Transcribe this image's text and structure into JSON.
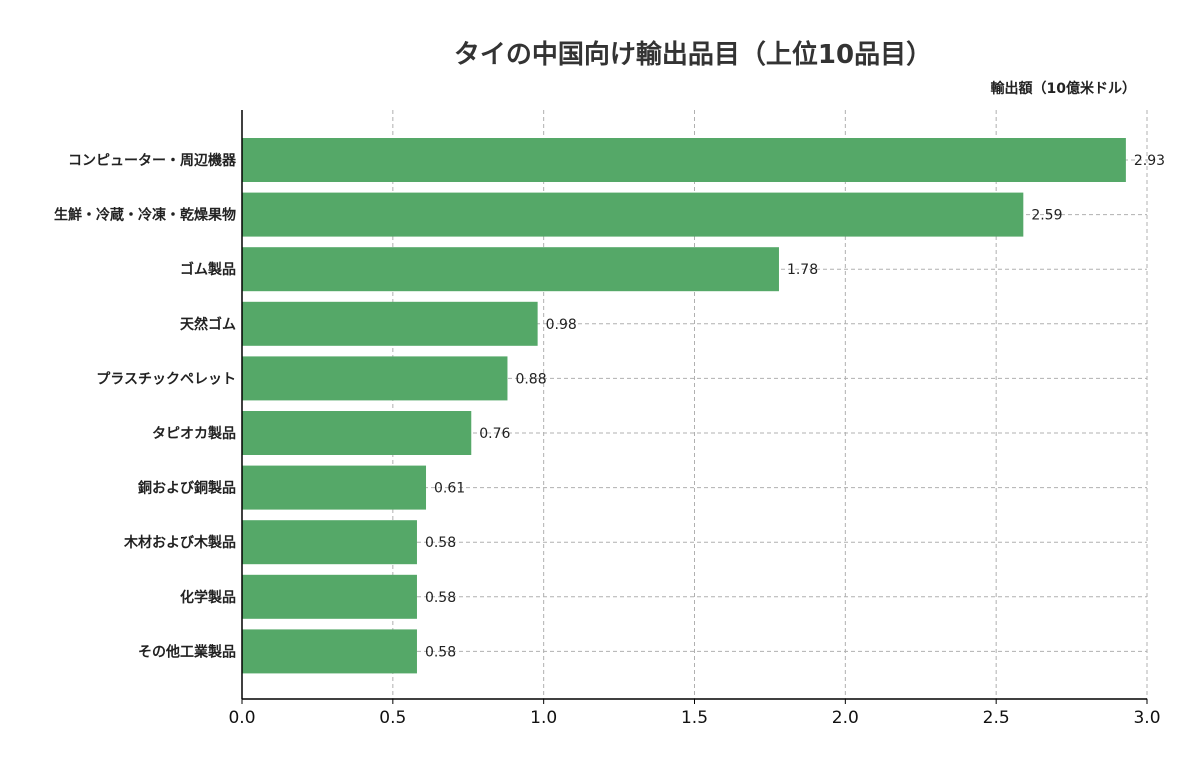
{
  "title": "タイの中国向け輸出品目（上位10品目）",
  "unit_label": "輸出額（10億米ドル）",
  "colors": {
    "bar": "#55a868",
    "grid": "#b0b0b0",
    "axis": "#000000"
  },
  "chart_data": {
    "type": "bar",
    "orientation": "horizontal",
    "title": "タイの中国向け輸出品目（上位10品目）",
    "xlabel": "輸出額（10億米ドル）",
    "ylabel": "",
    "categories": [
      "コンピューター・周辺機器",
      "生鮮・冷蔵・冷凍・乾燥果物",
      "ゴム製品",
      "天然ゴム",
      "プラスチックペレット",
      "タピオカ製品",
      "銅および銅製品",
      "木材および木製品",
      "化学製品",
      "その他工業製品"
    ],
    "values": [
      2.93,
      2.59,
      1.78,
      0.98,
      0.88,
      0.76,
      0.61,
      0.58,
      0.58,
      0.58
    ],
    "value_labels": [
      "2.93",
      "2.59",
      "1.78",
      "0.98",
      "0.88",
      "0.76",
      "0.61",
      "0.58",
      "0.58",
      "0.58"
    ],
    "xlim": [
      0,
      3.0
    ],
    "xticks": [
      0.0,
      0.5,
      1.0,
      1.5,
      2.0,
      2.5,
      3.0
    ],
    "xtick_labels": [
      "0.0",
      "0.5",
      "1.0",
      "1.5",
      "2.0",
      "2.5",
      "3.0"
    ],
    "grid": true,
    "grid_style": "dashed"
  }
}
